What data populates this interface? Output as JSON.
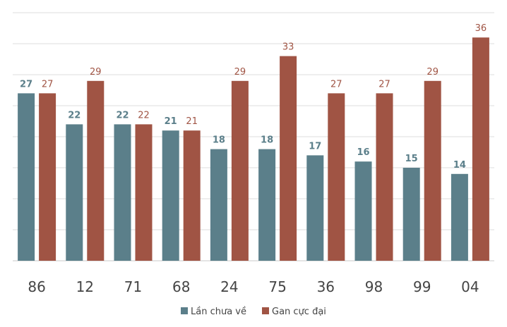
{
  "chart_data": {
    "type": "bar",
    "title": "",
    "xlabel": "",
    "ylabel": "",
    "ylim": [
      0,
      40
    ],
    "grid": true,
    "legend_position": "bottom-center",
    "categories": [
      "86",
      "12",
      "71",
      "68",
      "24",
      "75",
      "36",
      "98",
      "99",
      "04"
    ],
    "series": [
      {
        "name": "Lần chưa về",
        "color": "#5b7f8a",
        "values": [
          27,
          22,
          22,
          21,
          18,
          18,
          17,
          16,
          15,
          14
        ]
      },
      {
        "name": "Gan cực đại",
        "color": "#a05444",
        "values": [
          27,
          29,
          22,
          21,
          29,
          33,
          27,
          27,
          29,
          36
        ]
      }
    ]
  }
}
